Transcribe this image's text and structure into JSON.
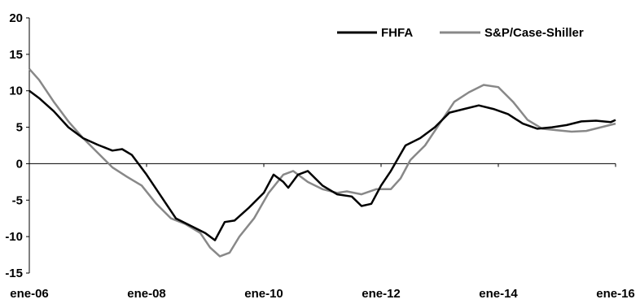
{
  "chart_data": {
    "type": "line",
    "title": "",
    "xlabel": "",
    "ylabel": "",
    "ylim": [
      -15,
      20
    ],
    "yticks": [
      -15,
      -10,
      -5,
      0,
      5,
      10,
      15,
      20
    ],
    "ytick_labels": [
      "-15",
      "-10",
      "-5",
      "0",
      "5",
      "10",
      "15",
      "20"
    ],
    "x_range": [
      "2006-01",
      "2016-01"
    ],
    "xticks": [
      "2006-01",
      "2008-01",
      "2010-01",
      "2012-01",
      "2014-01",
      "2016-01"
    ],
    "xtick_labels": [
      "ene-06",
      "ene-08",
      "ene-10",
      "ene-12",
      "ene-14",
      "ene-16"
    ],
    "grid": false,
    "legend_position": "top-right",
    "series": [
      {
        "name": "FHFA",
        "color": "#000000",
        "points": [
          [
            "2006-01",
            10.0
          ],
          [
            "2006-03",
            9.0
          ],
          [
            "2006-06",
            7.2
          ],
          [
            "2006-09",
            5.0
          ],
          [
            "2006-12",
            3.5
          ],
          [
            "2007-03",
            2.6
          ],
          [
            "2007-06",
            1.8
          ],
          [
            "2007-08",
            2.0
          ],
          [
            "2007-10",
            1.2
          ],
          [
            "2008-01",
            -1.5
          ],
          [
            "2008-04",
            -4.5
          ],
          [
            "2008-07",
            -7.5
          ],
          [
            "2008-10",
            -8.5
          ],
          [
            "2009-01",
            -9.5
          ],
          [
            "2009-03",
            -10.5
          ],
          [
            "2009-05",
            -8.0
          ],
          [
            "2009-07",
            -7.8
          ],
          [
            "2009-10",
            -6.0
          ],
          [
            "2010-01",
            -4.0
          ],
          [
            "2010-03",
            -1.5
          ],
          [
            "2010-05",
            -2.5
          ],
          [
            "2010-06",
            -3.3
          ],
          [
            "2010-08",
            -1.5
          ],
          [
            "2010-10",
            -1.0
          ],
          [
            "2011-01",
            -3.0
          ],
          [
            "2011-04",
            -4.2
          ],
          [
            "2011-07",
            -4.5
          ],
          [
            "2011-09",
            -5.8
          ],
          [
            "2011-11",
            -5.5
          ],
          [
            "2012-01",
            -3.0
          ],
          [
            "2012-03",
            -1.0
          ],
          [
            "2012-06",
            2.5
          ],
          [
            "2012-09",
            3.5
          ],
          [
            "2012-12",
            5.0
          ],
          [
            "2013-03",
            7.0
          ],
          [
            "2013-06",
            7.5
          ],
          [
            "2013-09",
            8.0
          ],
          [
            "2013-12",
            7.5
          ],
          [
            "2014-03",
            6.8
          ],
          [
            "2014-06",
            5.5
          ],
          [
            "2014-09",
            4.8
          ],
          [
            "2014-12",
            5.0
          ],
          [
            "2015-03",
            5.3
          ],
          [
            "2015-06",
            5.8
          ],
          [
            "2015-09",
            5.9
          ],
          [
            "2015-12",
            5.7
          ],
          [
            "2016-01",
            6.0
          ]
        ]
      },
      {
        "name": "S&P/Case-Shiller",
        "color": "#888888",
        "points": [
          [
            "2006-01",
            13.0
          ],
          [
            "2006-03",
            11.5
          ],
          [
            "2006-06",
            8.5
          ],
          [
            "2006-09",
            5.8
          ],
          [
            "2006-12",
            3.5
          ],
          [
            "2007-03",
            1.5
          ],
          [
            "2007-06",
            -0.5
          ],
          [
            "2007-09",
            -1.8
          ],
          [
            "2007-12",
            -3.0
          ],
          [
            "2008-03",
            -5.5
          ],
          [
            "2008-06",
            -7.5
          ],
          [
            "2008-09",
            -8.3
          ],
          [
            "2008-12",
            -9.5
          ],
          [
            "2009-02",
            -11.5
          ],
          [
            "2009-04",
            -12.7
          ],
          [
            "2009-06",
            -12.2
          ],
          [
            "2009-08",
            -10.0
          ],
          [
            "2009-11",
            -7.5
          ],
          [
            "2010-02",
            -4.0
          ],
          [
            "2010-05",
            -1.5
          ],
          [
            "2010-07",
            -1.0
          ],
          [
            "2010-10",
            -2.5
          ],
          [
            "2011-01",
            -3.5
          ],
          [
            "2011-04",
            -4.0
          ],
          [
            "2011-06",
            -3.8
          ],
          [
            "2011-09",
            -4.2
          ],
          [
            "2011-12",
            -3.5
          ],
          [
            "2012-03",
            -3.5
          ],
          [
            "2012-05",
            -2.0
          ],
          [
            "2012-07",
            0.5
          ],
          [
            "2012-10",
            2.5
          ],
          [
            "2013-01",
            5.5
          ],
          [
            "2013-04",
            8.5
          ],
          [
            "2013-07",
            9.8
          ],
          [
            "2013-10",
            10.8
          ],
          [
            "2014-01",
            10.5
          ],
          [
            "2014-04",
            8.5
          ],
          [
            "2014-07",
            6.0
          ],
          [
            "2014-10",
            4.8
          ],
          [
            "2015-01",
            4.6
          ],
          [
            "2015-04",
            4.4
          ],
          [
            "2015-07",
            4.5
          ],
          [
            "2015-10",
            5.0
          ],
          [
            "2016-01",
            5.5
          ]
        ]
      }
    ]
  }
}
